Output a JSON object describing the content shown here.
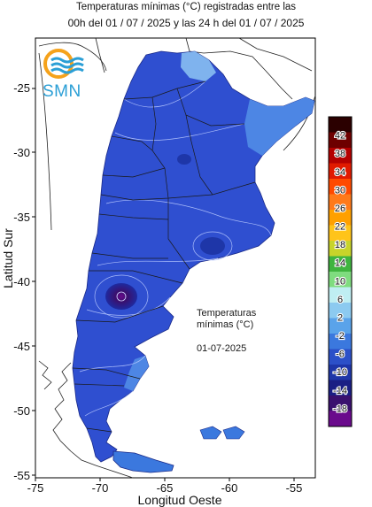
{
  "header": {
    "title_line1": "Temperaturas mínimas (°C) registradas entre las",
    "title_line2": "00h del 01 / 07 / 2025 y las 24 h del 01 / 07 / 2025"
  },
  "logo": {
    "text": "SMN",
    "colors": {
      "ring": "#f5a21b",
      "waves": "#2b9fd6"
    }
  },
  "axes": {
    "x_label": "Longitud Oeste",
    "y_label": "Latitud Sur",
    "x_ticks": [
      "-75",
      "-70",
      "-65",
      "-60",
      "-55"
    ],
    "y_ticks": [
      "-25",
      "-30",
      "-35",
      "-40",
      "-45",
      "-50",
      "-55"
    ]
  },
  "legend": {
    "labels": [
      "42",
      "38",
      "34",
      "30",
      "26",
      "22",
      "18",
      "14",
      "10",
      "6",
      "2",
      "-2",
      "-6",
      "-10",
      "-14",
      "-18"
    ],
    "colors": [
      "#2b0000",
      "#6e0000",
      "#b40000",
      "#e01a00",
      "#ff4a00",
      "#ff7a1a",
      "#ffa000",
      "#ffc41a",
      "#c8d42a",
      "#3fb43f",
      "#7fdc7f",
      "#bfeef2",
      "#8ccaf0",
      "#5aa3ea",
      "#3b78de",
      "#2c50c8",
      "#1e36a8",
      "#1a1e84",
      "#3a106e",
      "#6a0a8c"
    ]
  },
  "annotation": {
    "line1": "Temperaturas",
    "line2": "mínimas (°C)",
    "date": "01-07-2025"
  }
}
